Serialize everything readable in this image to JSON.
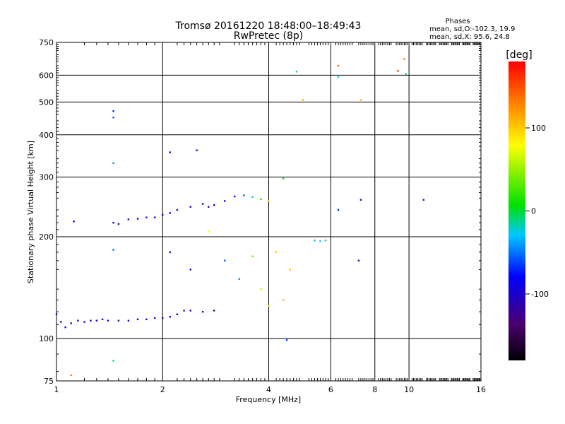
{
  "chart_data": {
    "type": "scatter",
    "title": "Tromsø 20161220 18:48:00–18:49:43",
    "subtitle": "RwPretec (8p)",
    "xlabel": "Frequency [MHz]",
    "ylabel": "Stationary phase Virtual Height [km]",
    "x_scale": "log",
    "y_scale": "log",
    "xlim": [
      1,
      16
    ],
    "ylim": [
      75,
      750
    ],
    "x_ticks": [
      1,
      2,
      4,
      6,
      8,
      10,
      16
    ],
    "x_tick_labels": [
      "1",
      "2",
      "4",
      "6",
      "8",
      "10",
      "16"
    ],
    "y_ticks": [
      75,
      100,
      200,
      300,
      400,
      500,
      600,
      750
    ],
    "y_tick_labels": [
      "75",
      "100",
      "200",
      "300",
      "400",
      "500",
      "600",
      "750"
    ],
    "grid": true,
    "stats": {
      "heading": "Phases",
      "line_o": "mean, sd,O:-102.3, 19.9",
      "line_x": "mean, sd,X:  95.6, 24.8"
    },
    "colorbar": {
      "label": "[deg]",
      "range": [
        -180,
        180
      ],
      "ticks": [
        100,
        0,
        -100
      ],
      "tick_labels": [
        "100",
        "0",
        "-100"
      ]
    },
    "series": [
      {
        "points": [
          [
            1.0,
            118,
            -100
          ],
          [
            1.03,
            112,
            -105
          ],
          [
            1.06,
            108,
            -98
          ],
          [
            1.1,
            111,
            -102
          ],
          [
            1.15,
            113,
            -100
          ],
          [
            1.2,
            112,
            -104
          ],
          [
            1.25,
            113,
            -99
          ],
          [
            1.3,
            113,
            -101
          ],
          [
            1.35,
            114,
            -103
          ],
          [
            1.4,
            113,
            -100
          ],
          [
            1.5,
            113,
            -102
          ],
          [
            1.6,
            113,
            -100
          ],
          [
            1.7,
            114,
            -101
          ],
          [
            1.8,
            114,
            -99
          ],
          [
            1.9,
            115,
            -103
          ],
          [
            2.0,
            115,
            -100
          ],
          [
            2.1,
            116,
            -102
          ],
          [
            2.2,
            118,
            -100
          ],
          [
            2.3,
            121,
            -98
          ],
          [
            2.4,
            121,
            -102
          ],
          [
            2.6,
            120,
            -100
          ],
          [
            2.8,
            121,
            -101
          ],
          [
            1.45,
            220,
            -100
          ],
          [
            1.5,
            218,
            -98
          ],
          [
            1.6,
            225,
            -102
          ],
          [
            1.7,
            226,
            -100
          ],
          [
            1.8,
            228,
            -100
          ],
          [
            1.9,
            228,
            -99
          ],
          [
            2.0,
            232,
            -101
          ],
          [
            2.1,
            235,
            -100
          ],
          [
            2.2,
            240,
            -103
          ],
          [
            2.4,
            245,
            -102
          ],
          [
            2.6,
            250,
            -100
          ],
          [
            2.7,
            245,
            -98
          ],
          [
            2.8,
            248,
            -101
          ],
          [
            3.0,
            255,
            -95
          ],
          [
            3.2,
            263,
            -80
          ],
          [
            3.4,
            265,
            -60
          ],
          [
            3.6,
            262,
            -20
          ],
          [
            3.8,
            258,
            20
          ],
          [
            4.0,
            255,
            90
          ],
          [
            1.45,
            470,
            -70
          ],
          [
            1.45,
            450,
            -60
          ],
          [
            1.45,
            330,
            -40
          ],
          [
            1.45,
            183,
            -55
          ],
          [
            1.45,
            86,
            -20
          ],
          [
            2.1,
            355,
            -100
          ],
          [
            2.5,
            360,
            -100
          ],
          [
            1.12,
            222,
            -100
          ],
          [
            2.7,
            207,
            80
          ],
          [
            4.4,
            297,
            0
          ],
          [
            4.8,
            615,
            -10
          ],
          [
            5.0,
            507,
            110
          ],
          [
            6.3,
            640,
            140
          ],
          [
            6.3,
            593,
            -30
          ],
          [
            7.3,
            507,
            110
          ],
          [
            7.3,
            257,
            -120
          ],
          [
            7.2,
            170,
            -110
          ],
          [
            6.3,
            240,
            -70
          ],
          [
            9.3,
            618,
            160
          ],
          [
            9.7,
            670,
            130
          ],
          [
            9.8,
            605,
            -10
          ],
          [
            11.0,
            257,
            -120
          ],
          [
            1.1,
            78,
            130
          ],
          [
            4.5,
            99,
            -60
          ],
          [
            5.4,
            195,
            -30
          ],
          [
            5.6,
            194,
            -25
          ],
          [
            5.8,
            195,
            -20
          ],
          [
            2.1,
            180,
            -110
          ],
          [
            2.4,
            160,
            -90
          ],
          [
            3.0,
            170,
            -60
          ],
          [
            3.6,
            175,
            40
          ],
          [
            4.2,
            180,
            100
          ],
          [
            4.6,
            160,
            100
          ],
          [
            4.4,
            130,
            110
          ],
          [
            4.0,
            125,
            90
          ],
          [
            3.8,
            140,
            60
          ],
          [
            3.3,
            150,
            -40
          ]
        ]
      }
    ]
  }
}
